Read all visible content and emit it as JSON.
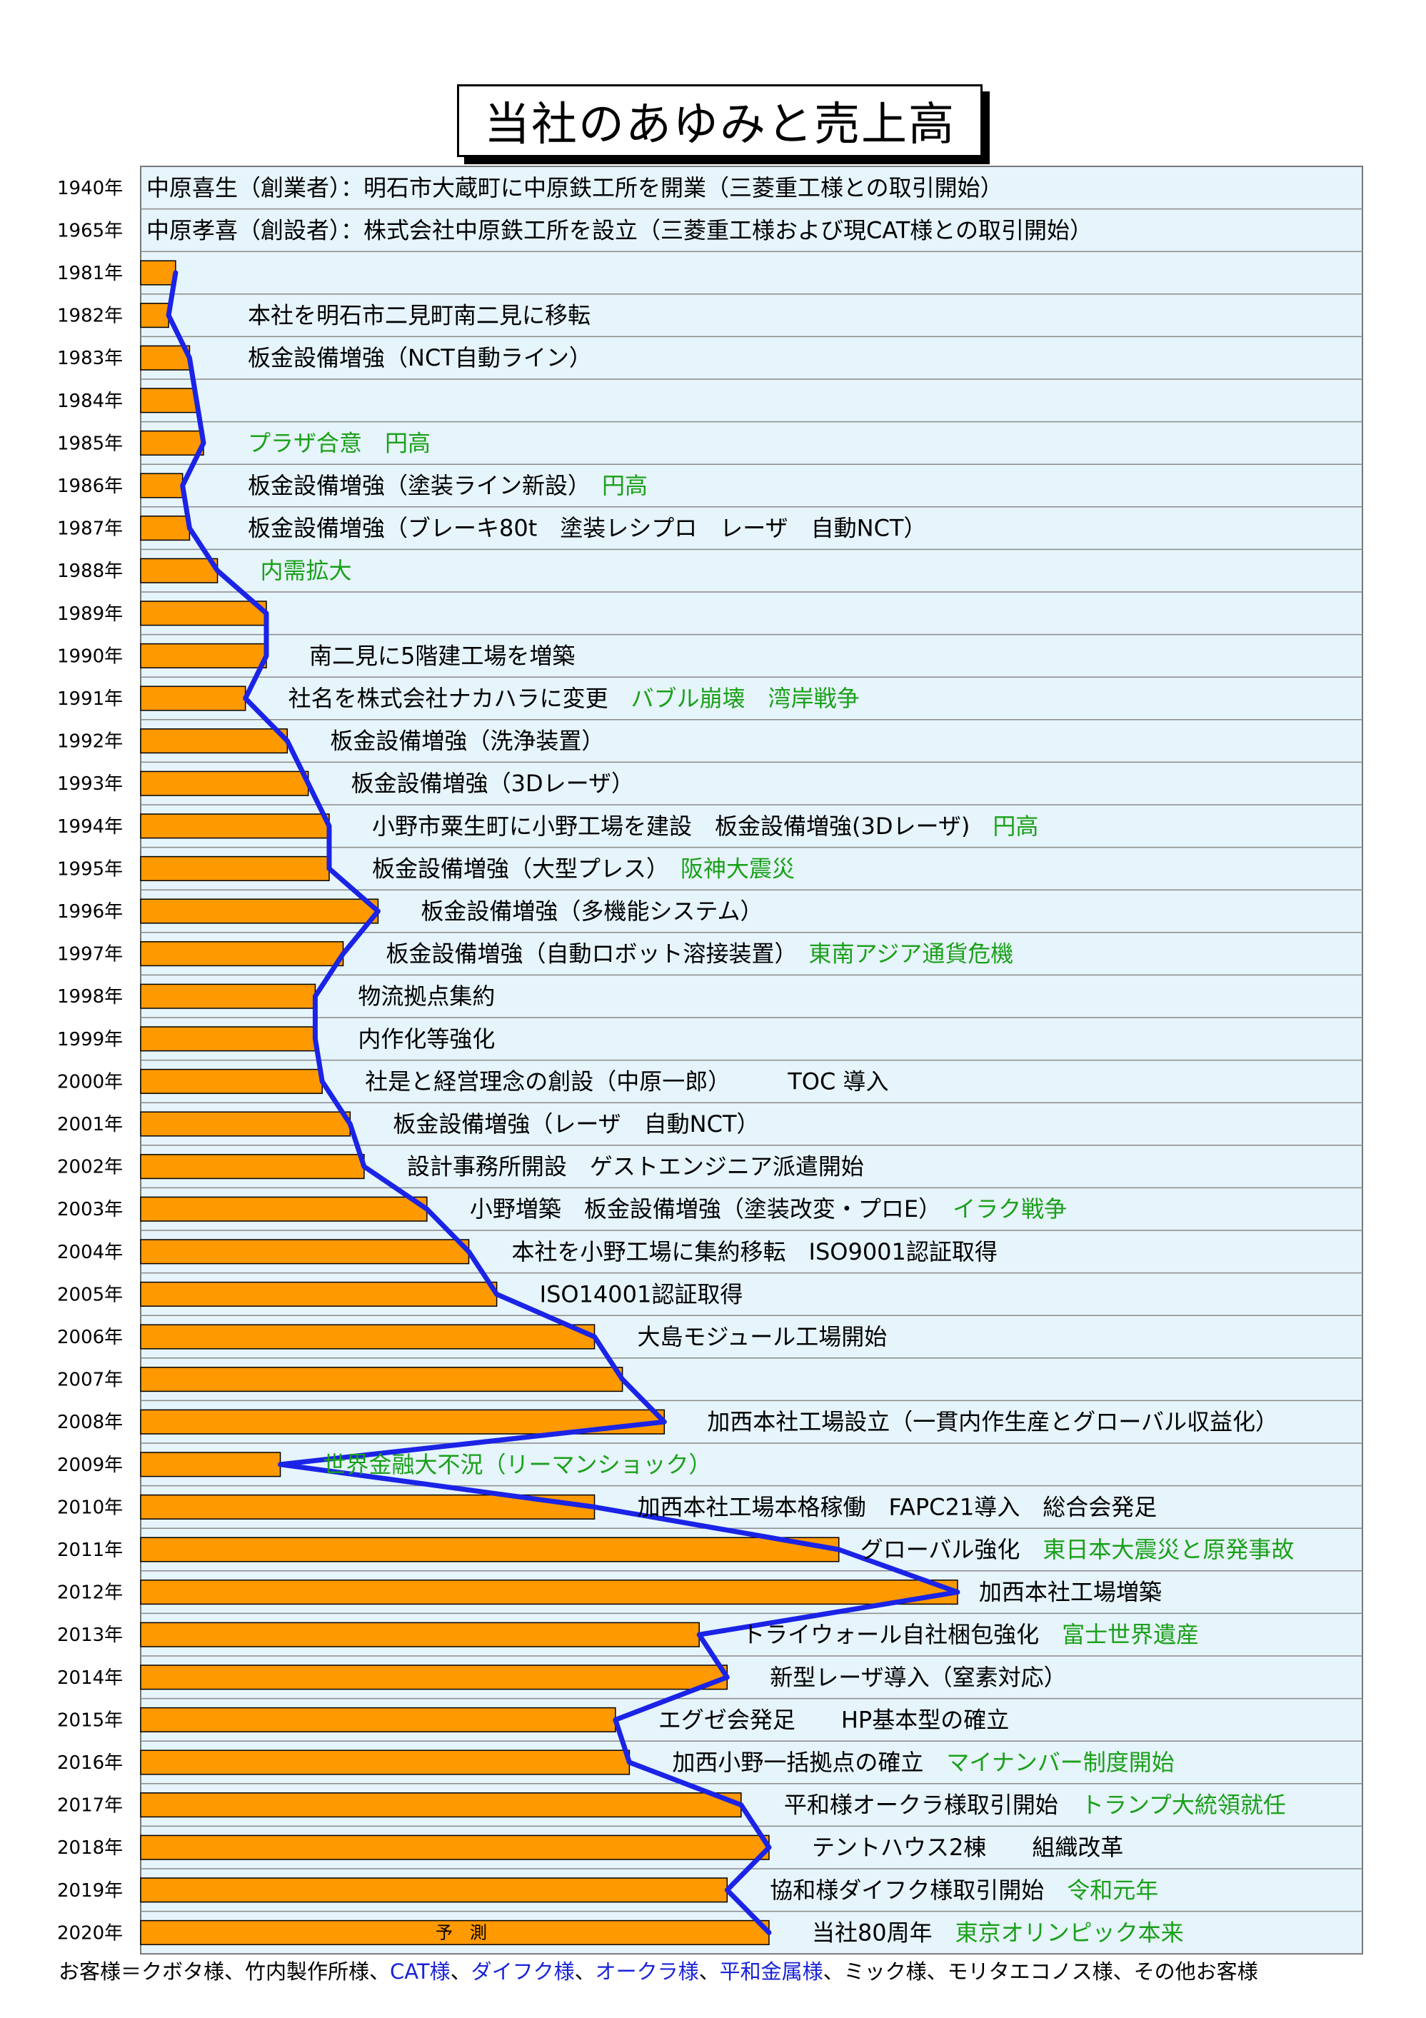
{
  "title": "当社のあゆみと売上高",
  "colors": {
    "bar": "#ff9900",
    "line": "#1a23e6",
    "panel": "#e6f4fb",
    "event_green": "#1aa01a",
    "footer_blue": "#1a23d6"
  },
  "chart_data": {
    "type": "bar",
    "orientation": "horizontal",
    "title": "当社のあゆみと売上高",
    "categories": [
      "1940年",
      "1965年",
      "1981年",
      "1982年",
      "1983年",
      "1984年",
      "1985年",
      "1986年",
      "1987年",
      "1988年",
      "1989年",
      "1990年",
      "1991年",
      "1992年",
      "1993年",
      "1994年",
      "1995年",
      "1996年",
      "1997年",
      "1998年",
      "1999年",
      "2000年",
      "2001年",
      "2002年",
      "2003年",
      "2004年",
      "2005年",
      "2006年",
      "2007年",
      "2008年",
      "2009年",
      "2010年",
      "2011年",
      "2012年",
      "2013年",
      "2014年",
      "2015年",
      "2016年",
      "2017年",
      "2018年",
      "2019年",
      "2020年"
    ],
    "values": [
      null,
      null,
      5,
      4,
      7,
      8,
      9,
      6,
      7,
      11,
      18,
      18,
      15,
      21,
      24,
      27,
      27,
      34,
      29,
      25,
      25,
      26,
      30,
      32,
      41,
      47,
      51,
      65,
      69,
      75,
      20,
      65,
      100,
      117,
      80,
      84,
      68,
      70,
      86,
      90,
      84,
      90
    ],
    "line_values": [
      null,
      null,
      5,
      4,
      7,
      8,
      9,
      6,
      7,
      11,
      18,
      18,
      15,
      21,
      24,
      27,
      27,
      34,
      29,
      25,
      25,
      26,
      30,
      32,
      41,
      47,
      51,
      65,
      69,
      75,
      20,
      65,
      100,
      117,
      80,
      84,
      68,
      70,
      86,
      90,
      84,
      90
    ],
    "forecast_label": "予　測",
    "xlim": [
      0,
      175
    ],
    "grid": true
  },
  "events": [
    {
      "year": "1940年",
      "parts": [
        {
          "text": "中原喜生（創業者）：明石市大蔵町に中原鉄工所を開業（三菱重工様との取引開始）",
          "color": "black"
        }
      ]
    },
    {
      "year": "1965年",
      "parts": [
        {
          "text": "中原孝喜（創設者）：株式会社中原鉄工所を設立（三菱重工様および現CAT様との取引開始）",
          "color": "black"
        }
      ]
    },
    {
      "year": "1981年",
      "parts": []
    },
    {
      "year": "1982年",
      "parts": [
        {
          "text": "本社を明石市二見町南二見に移転",
          "color": "black"
        }
      ]
    },
    {
      "year": "1983年",
      "parts": [
        {
          "text": "板金設備増強（NCT自動ライン）",
          "color": "black"
        }
      ]
    },
    {
      "year": "1984年",
      "parts": []
    },
    {
      "year": "1985年",
      "parts": [
        {
          "text": "プラザ合意　円高",
          "color": "green"
        }
      ]
    },
    {
      "year": "1986年",
      "parts": [
        {
          "text": "板金設備増強（塗装ライン新設）",
          "color": "black"
        },
        {
          "text": "円高",
          "color": "green"
        }
      ]
    },
    {
      "year": "1987年",
      "parts": [
        {
          "text": "板金設備増強（ブレーキ80t　塗装レシプロ　レーザ　自動NCT）",
          "color": "black"
        }
      ]
    },
    {
      "year": "1988年",
      "parts": [
        {
          "text": "内需拡大",
          "color": "green"
        }
      ]
    },
    {
      "year": "1989年",
      "parts": []
    },
    {
      "year": "1990年",
      "parts": [
        {
          "text": "南二見に5階建工場を増築",
          "color": "black"
        }
      ]
    },
    {
      "year": "1991年",
      "parts": [
        {
          "text": "社名を株式会社ナカハラに変更",
          "color": "black"
        },
        {
          "text": "バブル崩壊　湾岸戦争",
          "color": "green"
        }
      ]
    },
    {
      "year": "1992年",
      "parts": [
        {
          "text": "板金設備増強（洗浄装置）",
          "color": "black"
        }
      ]
    },
    {
      "year": "1993年",
      "parts": [
        {
          "text": "板金設備増強（3Dレーザ）",
          "color": "black"
        }
      ]
    },
    {
      "year": "1994年",
      "parts": [
        {
          "text": "小野市粟生町に小野工場を建設　板金設備増強(3Dレーザ)",
          "color": "black"
        },
        {
          "text": "円高",
          "color": "green"
        }
      ]
    },
    {
      "year": "1995年",
      "parts": [
        {
          "text": "板金設備増強（大型プレス）",
          "color": "black"
        },
        {
          "text": "阪神大震災",
          "color": "green"
        }
      ]
    },
    {
      "year": "1996年",
      "parts": [
        {
          "text": "板金設備増強（多機能システム）",
          "color": "black"
        }
      ]
    },
    {
      "year": "1997年",
      "parts": [
        {
          "text": "板金設備増強（自動ロボット溶接装置）",
          "color": "black"
        },
        {
          "text": "東南アジア通貨危機",
          "color": "green"
        }
      ]
    },
    {
      "year": "1998年",
      "parts": [
        {
          "text": "物流拠点集約",
          "color": "black"
        }
      ]
    },
    {
      "year": "1999年",
      "parts": [
        {
          "text": "内作化等強化",
          "color": "black"
        }
      ]
    },
    {
      "year": "2000年",
      "parts": [
        {
          "text": "社是と経営理念の創設（中原一郎）　　　TOC 導入",
          "color": "black"
        }
      ]
    },
    {
      "year": "2001年",
      "parts": [
        {
          "text": "板金設備増強（レーザ　自動NCT）",
          "color": "black"
        }
      ]
    },
    {
      "year": "2002年",
      "parts": [
        {
          "text": "設計事務所開設　ゲストエンジニア派遣開始",
          "color": "black"
        }
      ]
    },
    {
      "year": "2003年",
      "parts": [
        {
          "text": "小野増築　板金設備増強（塗装改変・プロE）",
          "color": "black"
        },
        {
          "text": "イラク戦争",
          "color": "green"
        }
      ]
    },
    {
      "year": "2004年",
      "parts": [
        {
          "text": "本社を小野工場に集約移転　ISO9001認証取得",
          "color": "black"
        }
      ]
    },
    {
      "year": "2005年",
      "parts": [
        {
          "text": "ISO14001認証取得",
          "color": "black"
        }
      ]
    },
    {
      "year": "2006年",
      "parts": [
        {
          "text": "大島モジュール工場開始",
          "color": "black"
        }
      ]
    },
    {
      "year": "2007年",
      "parts": []
    },
    {
      "year": "2008年",
      "parts": [
        {
          "text": "加西本社工場設立（一貫内作生産とグローバル収益化）",
          "color": "black"
        }
      ]
    },
    {
      "year": "2009年",
      "parts": [
        {
          "text": "世界金融大不況（リーマンショック）",
          "color": "green"
        }
      ]
    },
    {
      "year": "2010年",
      "parts": [
        {
          "text": "加西本社工場本格稼働　FAPC21導入　総合会発足",
          "color": "black"
        }
      ]
    },
    {
      "year": "2011年",
      "parts": [
        {
          "text": "グローバル強化",
          "color": "black"
        },
        {
          "text": "東日本大震災と原発事故",
          "color": "green"
        }
      ]
    },
    {
      "year": "2012年",
      "parts": [
        {
          "text": "加西本社工場増築",
          "color": "black"
        }
      ]
    },
    {
      "year": "2013年",
      "parts": [
        {
          "text": "トライウォール自社梱包強化",
          "color": "black"
        },
        {
          "text": "富士世界遺産",
          "color": "green"
        }
      ]
    },
    {
      "year": "2014年",
      "parts": [
        {
          "text": "新型レーザ導入（窒素対応）",
          "color": "black"
        }
      ]
    },
    {
      "year": "2015年",
      "parts": [
        {
          "text": "エグゼ会発足　　HP基本型の確立",
          "color": "black"
        }
      ]
    },
    {
      "year": "2016年",
      "parts": [
        {
          "text": "加西小野一括拠点の確立",
          "color": "black"
        },
        {
          "text": "マイナンバー制度開始",
          "color": "green"
        }
      ]
    },
    {
      "year": "2017年",
      "parts": [
        {
          "text": "平和様オークラ様取引開始",
          "color": "black"
        },
        {
          "text": "トランプ大統領就任",
          "color": "green"
        }
      ]
    },
    {
      "year": "2018年",
      "parts": [
        {
          "text": "テントハウス2棟　　組織改革",
          "color": "black"
        }
      ]
    },
    {
      "year": "2019年",
      "parts": [
        {
          "text": "協和様ダイフク様取引開始",
          "color": "black"
        },
        {
          "text": "令和元年",
          "color": "green"
        }
      ]
    },
    {
      "year": "2020年",
      "parts": [
        {
          "text": "当社80周年",
          "color": "black"
        },
        {
          "text": "東京オリンピック本来",
          "color": "green"
        }
      ]
    }
  ],
  "footer": {
    "prefix": "お客様＝クボタ様、竹内製作所様、",
    "cat": "CAT様",
    "sep1": "、",
    "daifuku": "ダイフク様",
    "sep2": "、",
    "okura": "オークラ様",
    "sep3": "、",
    "heiwa": "平和金属様",
    "suffix": "、ミック様、モリタエコノス様、その他お客様"
  }
}
